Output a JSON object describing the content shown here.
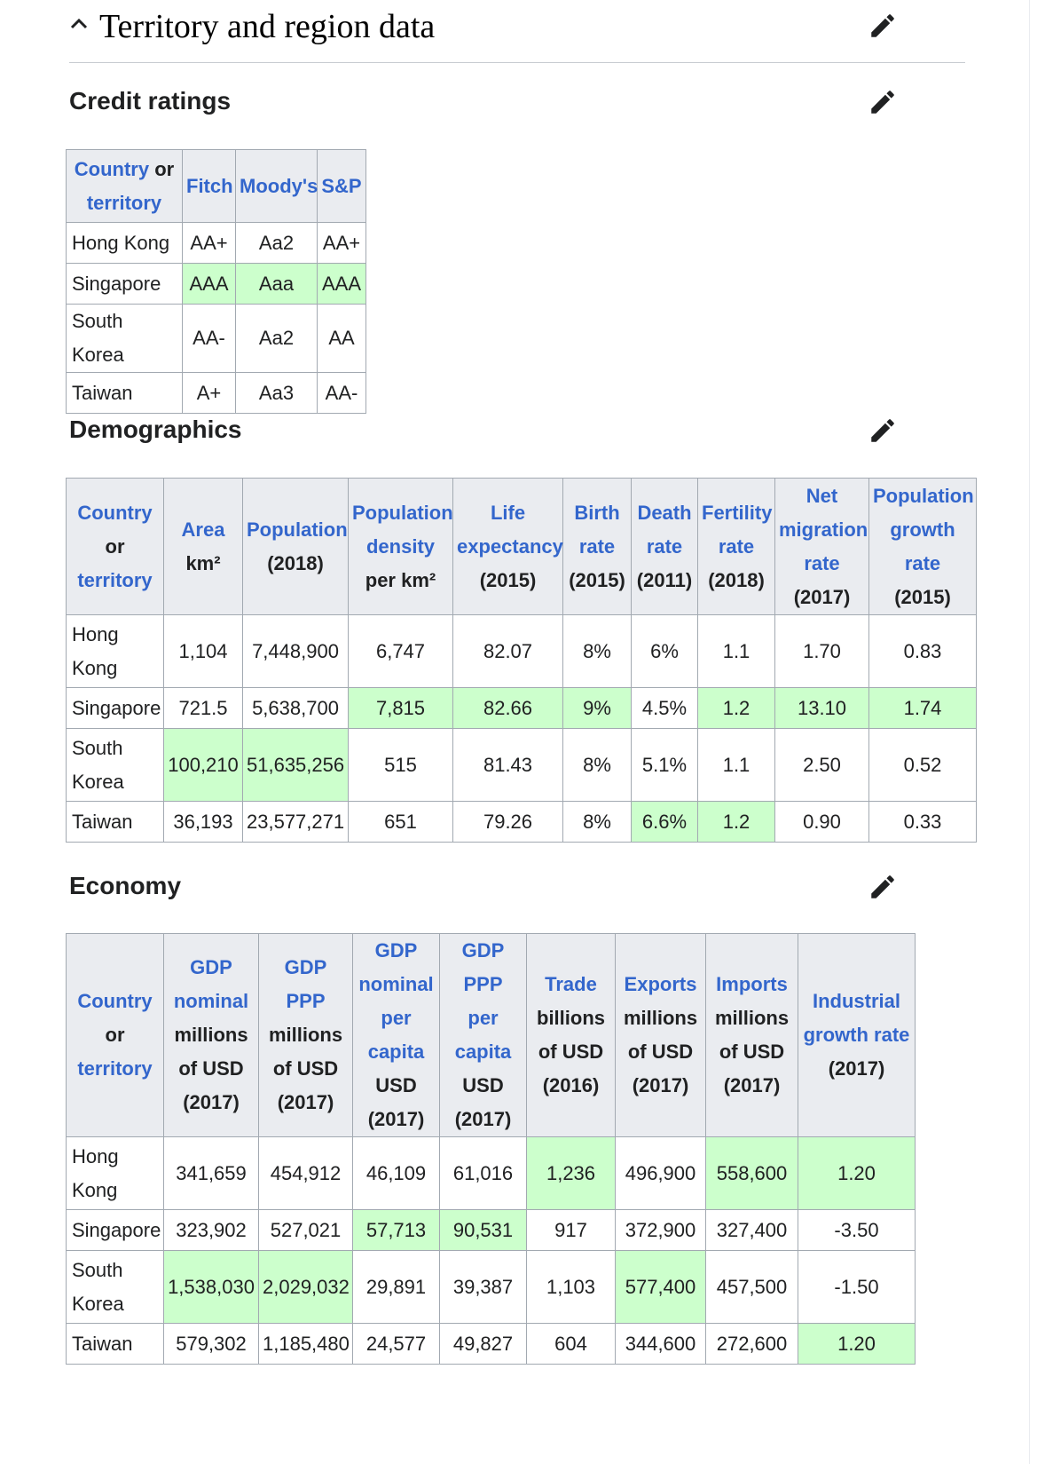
{
  "page": {
    "section_title": "Territory and region data"
  },
  "credit": {
    "title": "Credit ratings",
    "header": {
      "country_link": "Country",
      "country_or": " or ",
      "country_territory": "territory",
      "fitch": "Fitch",
      "moodys": "Moody's",
      "sp": "S&P"
    },
    "rows": [
      {
        "name": "Hong Kong",
        "fitch": "AA+",
        "moodys": "Aa2",
        "sp": "AA+"
      },
      {
        "name": "Singapore",
        "fitch": "AAA",
        "moodys": "Aaa",
        "sp": "AAA"
      },
      {
        "name": "South Korea",
        "fitch": "AA-",
        "moodys": "Aa2",
        "sp": "AA"
      },
      {
        "name": "Taiwan",
        "fitch": "A+",
        "moodys": "Aa3",
        "sp": "AA-"
      }
    ]
  },
  "demo": {
    "title": "Demographics",
    "header": {
      "country_link": "Country",
      "country_or": "or",
      "country_territory": "territory",
      "area_link": "Area",
      "area_unit": "km²",
      "pop_link": "Population",
      "pop_year": "(2018)",
      "dens_link1": "Population",
      "dens_link2": "density",
      "dens_unit": "per km²",
      "life_link1": "Life",
      "life_link2": "expectancy",
      "life_year": "(2015)",
      "birth_link1": "Birth",
      "birth_link2": "rate",
      "birth_year": "(2015)",
      "death_link1": "Death",
      "death_link2": "rate",
      "death_year": "(2011)",
      "fert_link1": "Fertility",
      "fert_link2": "rate",
      "fert_year": "(2018)",
      "mig_link1": "Net",
      "mig_link2": "migration",
      "mig_link3": "rate",
      "mig_year": "(2017)",
      "grow_link1": "Population",
      "grow_link2": "growth",
      "grow_link3": "rate",
      "grow_year": "(2015)"
    },
    "rows": [
      {
        "name1": "Hong",
        "name2": "Kong",
        "area": "1,104",
        "pop": "7,448,900",
        "dens": "6,747",
        "life": "82.07",
        "birth": "8%",
        "death": "6%",
        "fert": "1.1",
        "mig": "1.70",
        "grow": "0.83"
      },
      {
        "name1": "Singapore",
        "name2": "",
        "area": "721.5",
        "pop": "5,638,700",
        "dens": "7,815",
        "life": "82.66",
        "birth": "9%",
        "death": "4.5%",
        "fert": "1.2",
        "mig": "13.10",
        "grow": "1.74"
      },
      {
        "name1": "South",
        "name2": "Korea",
        "area": "100,210",
        "pop": "51,635,256",
        "dens": "515",
        "life": "81.43",
        "birth": "8%",
        "death": "5.1%",
        "fert": "1.1",
        "mig": "2.50",
        "grow": "0.52"
      },
      {
        "name1": "Taiwan",
        "name2": "",
        "area": "36,193",
        "pop": "23,577,271",
        "dens": "651",
        "life": "79.26",
        "birth": "8%",
        "death": "6.6%",
        "fert": "1.2",
        "mig": "0.90",
        "grow": "0.33"
      }
    ]
  },
  "econ": {
    "title": "Economy",
    "header": {
      "country_link": "Country",
      "country_or": "or",
      "country_territory": "territory",
      "gdpn_link1": "GDP",
      "gdpn_link2": "nominal",
      "gdpn_unit1": "millions",
      "gdpn_unit2": "of USD",
      "gdpn_year": "(2017)",
      "gdpp_link": "GDP PPP",
      "gdpp_unit1": "millions",
      "gdpp_unit2": "of USD",
      "gdpp_year": "(2017)",
      "gdpnpc_link1": "GDP",
      "gdpnpc_link2": "nominal",
      "gdpnpc_link3": "per",
      "gdpnpc_link4": "capita",
      "gdpnpc_unit": "USD",
      "gdpnpc_year": "(2017)",
      "gdpppc_link1": "GDP",
      "gdpppc_link2": "PPP",
      "gdpppc_link3": "per",
      "gdpppc_link4": "capita",
      "gdpppc_unit": "USD",
      "gdpppc_year": "(2017)",
      "trade_link": "Trade",
      "trade_unit1": "billions",
      "trade_unit2": "of USD",
      "trade_year": "(2016)",
      "exp_link": "Exports",
      "exp_unit1": "millions",
      "exp_unit2": "of USD",
      "exp_year": "(2017)",
      "imp_link": "Imports",
      "imp_unit1": "millions",
      "imp_unit2": "of USD",
      "imp_year": "(2017)",
      "ind_link1": "Industrial",
      "ind_link2": "growth rate",
      "ind_year": "(2017)"
    },
    "rows": [
      {
        "name1": "Hong",
        "name2": "Kong",
        "gdpn": "341,659",
        "gdpp": "454,912",
        "gdpnpc": "46,109",
        "gdpppc": "61,016",
        "trade": "1,236",
        "exp": "496,900",
        "imp": "558,600",
        "ind": "1.20"
      },
      {
        "name1": "Singapore",
        "name2": "",
        "gdpn": "323,902",
        "gdpp": "527,021",
        "gdpnpc": "57,713",
        "gdpppc": "90,531",
        "trade": "917",
        "exp": "372,900",
        "imp": "327,400",
        "ind": "-3.50"
      },
      {
        "name1": "South",
        "name2": "Korea",
        "gdpn": "1,538,030",
        "gdpp": "2,029,032",
        "gdpnpc": "29,891",
        "gdpppc": "39,387",
        "trade": "1,103",
        "exp": "577,400",
        "imp": "457,500",
        "ind": "-1.50"
      },
      {
        "name1": "Taiwan",
        "name2": "",
        "gdpn": "579,302",
        "gdpp": "1,185,480",
        "gdpnpc": "24,577",
        "gdpppc": "49,827",
        "trade": "604",
        "exp": "344,600",
        "imp": "272,600",
        "ind": "1.20"
      }
    ]
  },
  "icons": {
    "collapse": "chevron-up-icon",
    "edit": "pencil-icon"
  },
  "colors": {
    "link": "#3366cc",
    "highlight": "#ccffcc",
    "header_bg": "#eaecf0",
    "border": "#a2a9b1"
  }
}
